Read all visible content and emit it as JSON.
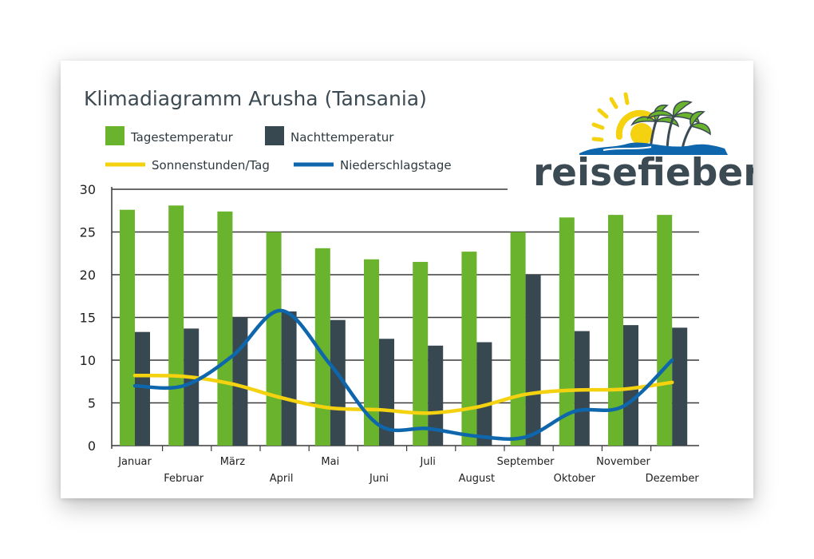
{
  "colors": {
    "day": "#6ab42d",
    "night": "#374850",
    "sun": "#f5d20f",
    "rain": "#0e66ad",
    "grid": "#3a3a3a"
  },
  "logo": {
    "text": "reisefieber"
  },
  "chart_data": {
    "type": "bar",
    "title": "Klimadiagramm Arusha (Tansania)",
    "categories": [
      "Januar",
      "Februar",
      "März",
      "April",
      "Mai",
      "Juni",
      "Juli",
      "August",
      "September",
      "Oktober",
      "November",
      "Dezember"
    ],
    "ylim": [
      0,
      30
    ],
    "yticks": [
      "0",
      "5",
      "10",
      "15",
      "20",
      "25",
      "30"
    ],
    "grid": true,
    "legend_position": "top-left",
    "series": [
      {
        "name": "Tagestemperatur",
        "kind": "bar",
        "color": "#6ab42d",
        "values": [
          27.6,
          28.1,
          27.4,
          25.0,
          23.1,
          21.8,
          21.5,
          22.7,
          25.0,
          26.7,
          27.0,
          27.0
        ]
      },
      {
        "name": "Nachttemperatur",
        "kind": "bar",
        "color": "#374850",
        "values": [
          13.3,
          13.7,
          15.0,
          15.7,
          14.7,
          12.5,
          11.7,
          12.1,
          20.0,
          13.4,
          14.1,
          13.8
        ]
      },
      {
        "name": "Sonnenstunden/Tag",
        "kind": "line",
        "color": "#f5d20f",
        "values": [
          8.2,
          8.1,
          7.2,
          5.6,
          4.4,
          4.2,
          3.8,
          4.5,
          6.0,
          6.5,
          6.6,
          7.4
        ]
      },
      {
        "name": "Niederschlagstage",
        "kind": "line",
        "color": "#0e66ad",
        "values": [
          7.0,
          7.0,
          10.5,
          15.8,
          9.5,
          2.4,
          2.0,
          1.1,
          1.0,
          4.0,
          4.6,
          10.0
        ]
      }
    ]
  }
}
